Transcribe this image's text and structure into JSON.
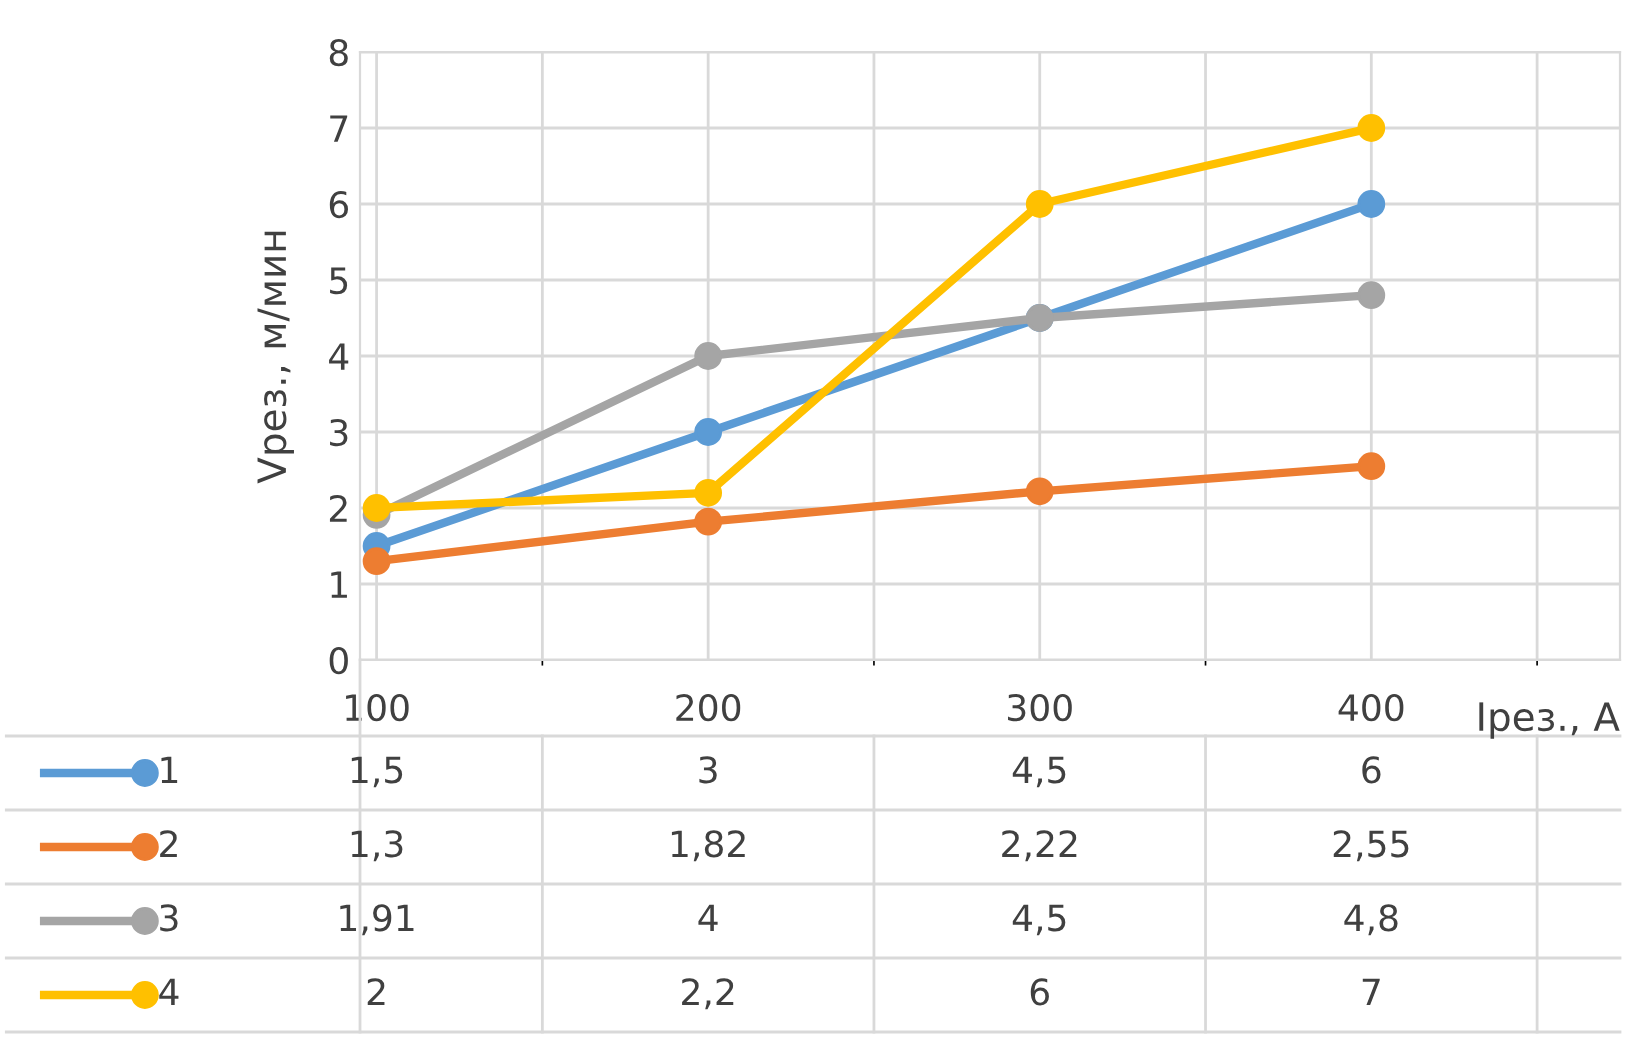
{
  "chart_data": {
    "type": "line",
    "ylabel": "Vрез., м/мин",
    "xlabel": "Iрез., А",
    "categories": [
      "100",
      "200",
      "300",
      "400"
    ],
    "series": [
      {
        "name": "1",
        "color": "#5b9bd5",
        "values": [
          1.5,
          3,
          4.5,
          6
        ],
        "value_labels": [
          "1,5",
          "3",
          "4,5",
          "6"
        ]
      },
      {
        "name": "2",
        "color": "#ed7d31",
        "values": [
          1.3,
          1.82,
          2.22,
          2.55
        ],
        "value_labels": [
          "1,3",
          "1,82",
          "2,22",
          "2,55"
        ]
      },
      {
        "name": "3",
        "color": "#a5a5a5",
        "values": [
          1.91,
          4,
          4.5,
          4.8
        ],
        "value_labels": [
          "1,91",
          "4",
          "4,5",
          "4,8"
        ]
      },
      {
        "name": "4",
        "color": "#ffc000",
        "values": [
          2,
          2.2,
          6,
          7
        ],
        "value_labels": [
          "2",
          "2,2",
          "6",
          "7"
        ]
      }
    ],
    "ylim": [
      0,
      8
    ],
    "yticks": [
      0,
      1,
      2,
      3,
      4,
      5,
      6,
      7,
      8
    ],
    "grid": true,
    "legend": "bottom",
    "marker": "circle",
    "line_style": "solid"
  }
}
